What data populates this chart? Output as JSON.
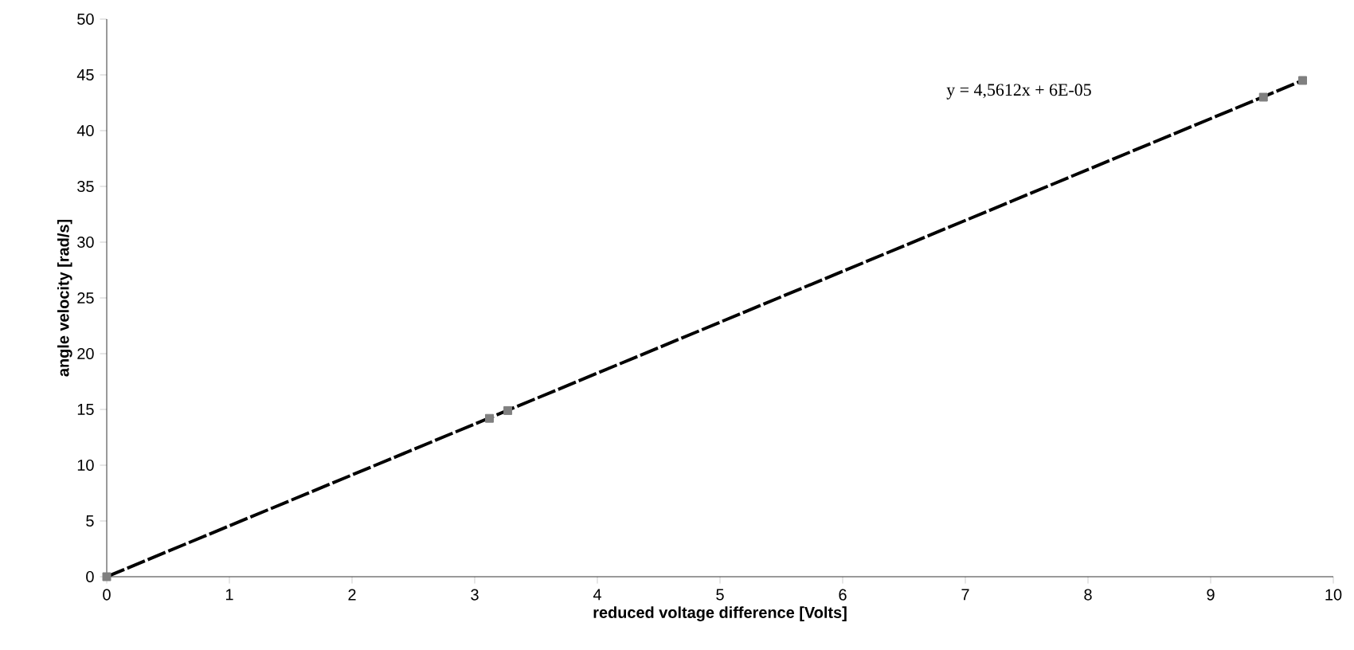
{
  "chart_data": {
    "type": "line",
    "xlabel": "reduced voltage difference [Volts]",
    "ylabel": "angle velocity [rad/s]",
    "annotations": [
      "y = 4,5612x + 6E-05"
    ],
    "series": [
      {
        "type": "scatter",
        "color": "#808080",
        "marker": "square",
        "x": [
          0,
          3.12,
          3.27,
          9.43,
          9.75
        ],
        "values": [
          0,
          14.2,
          14.9,
          43.0,
          44.5
        ]
      },
      {
        "color": "#000000",
        "marker": "none",
        "line_style": "dashed",
        "x": [
          0,
          9.75
        ],
        "values": [
          0,
          44.5
        ]
      }
    ],
    "xlim": [
      0,
      10
    ],
    "ylim": [
      0,
      50
    ],
    "xticks": [
      0,
      1,
      2,
      3,
      4,
      5,
      6,
      7,
      8,
      9,
      10
    ],
    "yticks": [
      0,
      5,
      10,
      15,
      20,
      25,
      30,
      35,
      40,
      45,
      50
    ],
    "grid": false
  }
}
